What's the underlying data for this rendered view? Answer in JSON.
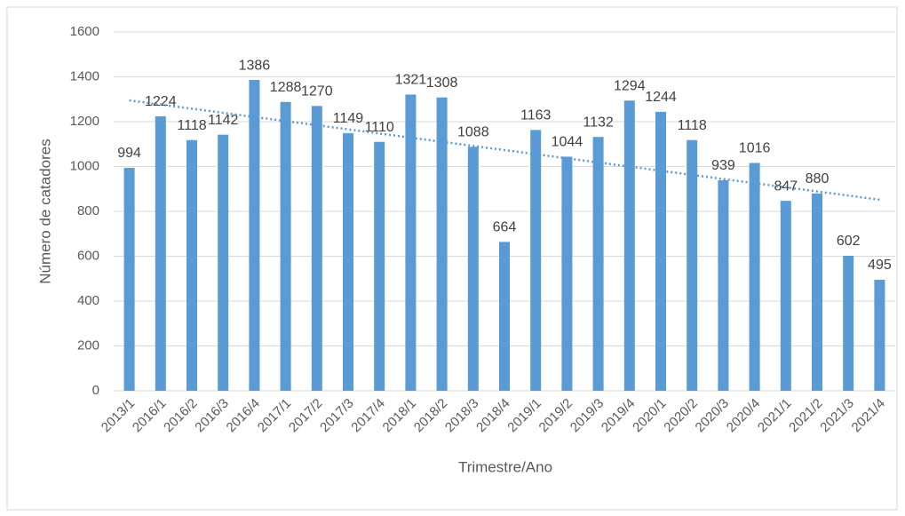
{
  "chart_data": {
    "type": "bar",
    "x_label": "Trimestre/Ano",
    "y_label": "Número de catadores",
    "categories": [
      "2013/1",
      "2016/1",
      "2016/2",
      "2016/3",
      "2016/4",
      "2017/1",
      "2017/2",
      "2017/3",
      "2017/4",
      "2018/1",
      "2018/2",
      "2018/3",
      "2018/4",
      "2019/1",
      "2019/2",
      "2019/3",
      "2019/4",
      "2020/1",
      "2020/2",
      "2020/3",
      "2020/4",
      "2021/1",
      "2021/2",
      "2021/3",
      "2021/4"
    ],
    "values": [
      994,
      1224,
      1118,
      1142,
      1386,
      1288,
      1270,
      1149,
      1110,
      1321,
      1308,
      1088,
      664,
      1163,
      1044,
      1132,
      1294,
      1244,
      1118,
      939,
      1016,
      847,
      880,
      602,
      495
    ],
    "color": "#5b9bd5",
    "trendline": "linear",
    "ylim": [
      0,
      1600
    ],
    "yticks": [
      0,
      200,
      400,
      600,
      800,
      1000,
      1200,
      1400,
      1600
    ],
    "grid": true
  }
}
